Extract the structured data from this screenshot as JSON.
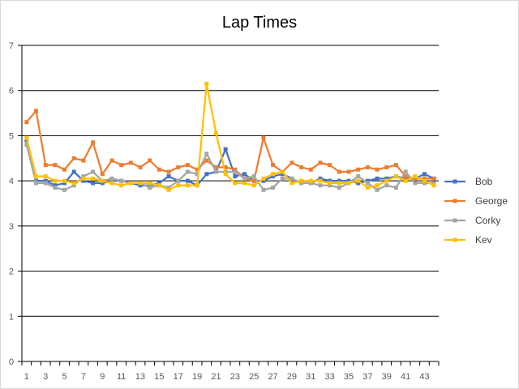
{
  "chart_data": {
    "type": "line",
    "title": "Lap Times",
    "xlabel": "",
    "ylabel": "",
    "ylim": [
      0,
      7
    ],
    "yticks": [
      0,
      1,
      2,
      3,
      4,
      5,
      6,
      7
    ],
    "x": [
      1,
      2,
      3,
      4,
      5,
      6,
      7,
      8,
      9,
      10,
      11,
      12,
      13,
      14,
      15,
      16,
      17,
      18,
      19,
      20,
      21,
      22,
      23,
      24,
      25,
      26,
      27,
      28,
      29,
      30,
      31,
      32,
      33,
      34,
      35,
      36,
      37,
      38,
      39,
      40,
      41,
      42,
      43,
      44
    ],
    "xtick_labels": [
      1,
      3,
      5,
      7,
      9,
      11,
      13,
      15,
      17,
      19,
      21,
      23,
      25,
      27,
      29,
      31,
      33,
      35,
      37,
      39,
      41,
      43
    ],
    "grid": "horizontal",
    "legend_position": "right",
    "series": [
      {
        "name": "Bob",
        "color": "#4472C4",
        "values": [
          4.9,
          4.0,
          4.0,
          3.9,
          3.95,
          4.2,
          4.0,
          3.95,
          3.95,
          4.0,
          4.0,
          3.95,
          3.9,
          3.9,
          3.95,
          4.1,
          4.0,
          4.0,
          3.9,
          4.15,
          4.2,
          4.7,
          4.1,
          4.15,
          4.0,
          4.0,
          4.1,
          4.15,
          4.05,
          3.95,
          3.95,
          4.05,
          4.0,
          4.0,
          4.0,
          3.95,
          4.0,
          4.05,
          4.05,
          4.1,
          4.05,
          4.05,
          4.15,
          4.05
        ]
      },
      {
        "name": "George",
        "color": "#ED7D31",
        "values": [
          5.3,
          5.55,
          4.35,
          4.35,
          4.25,
          4.5,
          4.45,
          4.85,
          4.15,
          4.45,
          4.35,
          4.4,
          4.3,
          4.45,
          4.25,
          4.2,
          4.3,
          4.35,
          4.25,
          4.45,
          4.3,
          4.3,
          4.25,
          4.05,
          4.0,
          4.95,
          4.35,
          4.2,
          4.4,
          4.3,
          4.25,
          4.4,
          4.35,
          4.2,
          4.2,
          4.25,
          4.3,
          4.25,
          4.3,
          4.35,
          4.1,
          4.05,
          4.05,
          4.05
        ]
      },
      {
        "name": "Corky",
        "color": "#A5A5A5",
        "values": [
          4.8,
          3.95,
          3.95,
          3.85,
          3.8,
          3.9,
          4.1,
          4.2,
          4.0,
          4.05,
          4.0,
          3.95,
          3.95,
          3.85,
          3.9,
          3.85,
          4.0,
          4.2,
          4.15,
          4.6,
          4.2,
          4.2,
          4.2,
          4.05,
          4.1,
          3.8,
          3.85,
          4.05,
          4.05,
          3.95,
          3.95,
          3.9,
          3.9,
          3.85,
          3.95,
          4.1,
          3.95,
          3.8,
          3.9,
          3.85,
          4.2,
          3.95,
          3.95,
          3.95
        ]
      },
      {
        "name": "Kev",
        "color": "#FFC000",
        "values": [
          4.95,
          4.1,
          4.1,
          4.0,
          4.0,
          3.95,
          4.05,
          4.05,
          4.0,
          3.95,
          3.9,
          3.95,
          3.95,
          3.95,
          3.9,
          3.8,
          3.9,
          3.9,
          3.9,
          6.15,
          5.05,
          4.15,
          3.95,
          3.95,
          3.9,
          4.05,
          4.15,
          4.2,
          3.95,
          4.0,
          4.0,
          4.0,
          3.95,
          3.95,
          3.95,
          4.0,
          3.85,
          3.9,
          4.0,
          4.1,
          4.0,
          4.1,
          4.0,
          3.9
        ]
      }
    ]
  }
}
